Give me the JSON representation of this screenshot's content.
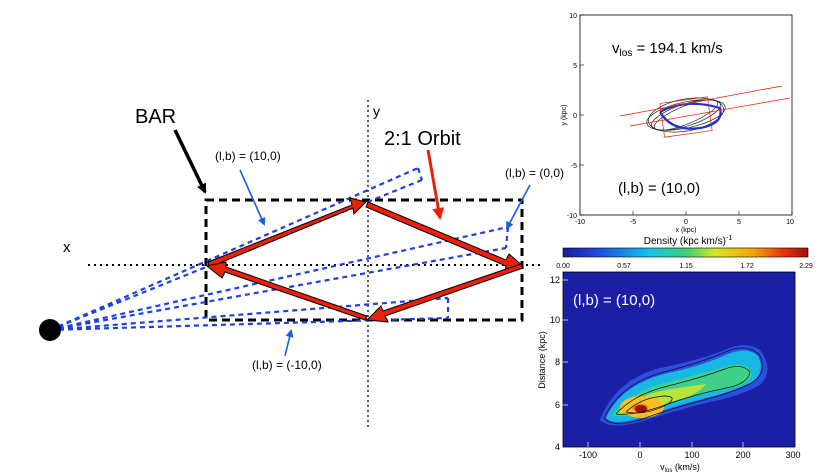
{
  "diagram": {
    "bar_label": "BAR",
    "orbit_label": "2:1 Orbit",
    "x_axis_label": "x",
    "y_axis_label": "y",
    "sightline_labels": [
      "(l,b) = (10,0)",
      "(l,b) = (0,0)",
      "(l,b) = (-10,0)"
    ],
    "colors": {
      "orbit": "#e8200c",
      "sightline": "#1f3fe0",
      "label_arrow_blue": "#1a5fe0",
      "label_arrow_red": "#e8200c"
    }
  },
  "orbit_panel": {
    "annotation_vlos": "v",
    "annotation_vlos_sub": "los",
    "annotation_vlos_value": " = 194.1 km/s",
    "annotation_lb": "(l,b) = (10,0)",
    "xlabel": "x (kpc)",
    "ylabel": "y (kpc)",
    "xlim": [
      -10,
      10
    ],
    "ylim": [
      -10,
      10
    ],
    "x_ticks": [
      "-10",
      "-5",
      "0",
      "5",
      "10"
    ],
    "y_ticks": [
      "10",
      "5",
      "0",
      "-5",
      "-10"
    ]
  },
  "colorbar": {
    "label": "Density (kpc km/s)",
    "label_sup": "-1",
    "ticks": [
      "0.00",
      "0.57",
      "1.15",
      "1.72",
      "2.29"
    ]
  },
  "density_panel": {
    "annotation": "(l,b) = (10,0)",
    "xlabel": "v",
    "xlabel_sub": "los",
    "xlabel_unit": " (km/s)",
    "ylabel": "Distance (kpc)",
    "x_ticks": [
      "-100",
      "0",
      "100",
      "200",
      "300"
    ],
    "y_ticks": [
      "12",
      "10",
      "8",
      "6",
      "4"
    ]
  }
}
